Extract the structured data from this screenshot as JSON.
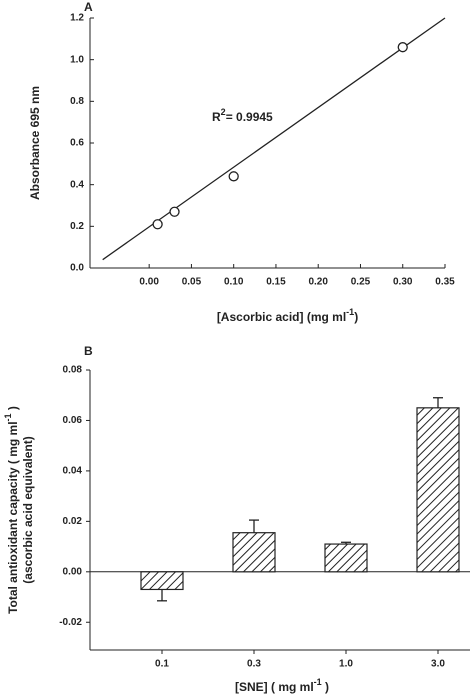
{
  "chart_data": [
    {
      "type": "scatter",
      "panel": "A",
      "y_label": "Absorbance 695 nm",
      "x_label": [
        "[Ascorbic acid] (mg ml",
        "-1",
        ")"
      ],
      "annotation": [
        "R",
        "2",
        "= 0.9945"
      ],
      "x": [
        0.01,
        0.03,
        0.1,
        0.3
      ],
      "values": [
        0.21,
        0.27,
        0.44,
        1.06
      ],
      "fit": {
        "x": [
          -0.055,
          0.35
        ],
        "values": [
          0.04,
          1.2
        ]
      },
      "xlim": [
        -0.07,
        0.35
      ],
      "ylim": [
        0,
        1.2
      ],
      "xticks": [
        {
          "value": 0,
          "label": "0.00"
        },
        {
          "value": 0.05,
          "label": "0.05"
        },
        {
          "value": 0.1,
          "label": "0.10"
        },
        {
          "value": 0.15,
          "label": "0.15"
        },
        {
          "value": 0.2,
          "label": "0.20"
        },
        {
          "value": 0.25,
          "label": "0.25"
        },
        {
          "value": 0.3,
          "label": "0.30"
        },
        {
          "value": 0.35,
          "label": "0.35"
        }
      ],
      "yticks": [
        {
          "value": 0,
          "label": "0.0"
        },
        {
          "value": 0.2,
          "label": "0.2"
        },
        {
          "value": 0.4,
          "label": "0.4"
        },
        {
          "value": 0.6,
          "label": "0.6"
        },
        {
          "value": 0.8,
          "label": "0.8"
        },
        {
          "value": 1.0,
          "label": "1.0"
        },
        {
          "value": 1.2,
          "label": "1.2"
        }
      ]
    },
    {
      "type": "bar",
      "panel": "B",
      "y_label": [
        [
          "Total antioxidant capacity ( mg ml",
          "-1",
          " )"
        ],
        [
          "(ascorbic acid equivalent)"
        ]
      ],
      "x_label": [
        "[SNE] ( mg ml",
        "-1",
        " )"
      ],
      "categories": [
        "0.1",
        "0.3",
        "1.0",
        "3.0"
      ],
      "values": [
        -0.007,
        0.0155,
        0.011,
        0.065
      ],
      "errors": [
        0.0045,
        0.005,
        0.0007,
        0.004
      ],
      "ylim": [
        -0.031,
        0.08
      ],
      "yticks": [
        {
          "value": -0.02,
          "label": "-0.02"
        },
        {
          "value": 0,
          "label": "0.00"
        },
        {
          "value": 0.02,
          "label": "0.02"
        },
        {
          "value": 0.04,
          "label": "0.04"
        },
        {
          "value": 0.06,
          "label": "0.06"
        },
        {
          "value": 0.08,
          "label": "0.08"
        }
      ]
    }
  ]
}
